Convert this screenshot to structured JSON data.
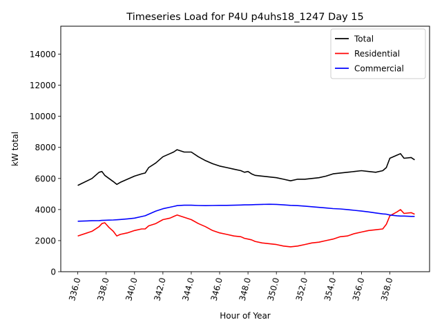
{
  "chart_data": {
    "type": "line",
    "title": "Timeseries Load for P4U p4uhs18_1247  Day 15",
    "xlabel": "Hour of Year",
    "ylabel": "kW total",
    "xlim": [
      334.8,
      360.8
    ],
    "ylim": [
      0,
      15800
    ],
    "xticks": [
      336,
      338,
      340,
      342,
      344,
      346,
      348,
      350,
      352,
      354,
      356,
      358
    ],
    "xtick_labels": [
      "336.0",
      "338.0",
      "340.0",
      "342.0",
      "344.0",
      "346.0",
      "348.0",
      "350.0",
      "352.0",
      "354.0",
      "356.0",
      "358.0"
    ],
    "yticks": [
      0,
      2000,
      4000,
      6000,
      8000,
      10000,
      12000,
      14000
    ],
    "ytick_labels": [
      "0",
      "2000",
      "4000",
      "6000",
      "8000",
      "10000",
      "12000",
      "14000"
    ],
    "legend_position": "top-right",
    "grid": false,
    "x": [
      336.0,
      337.0,
      337.5,
      337.7,
      337.9,
      338.2,
      338.5,
      338.75,
      339.0,
      339.5,
      340.0,
      340.5,
      340.75,
      341.0,
      341.5,
      342.0,
      342.5,
      342.75,
      343.0,
      343.5,
      344.0,
      344.5,
      345.0,
      345.5,
      346.0,
      346.5,
      347.0,
      347.5,
      347.75,
      348.0,
      348.25,
      348.5,
      349.0,
      349.5,
      350.0,
      350.5,
      351.0,
      351.5,
      352.0,
      352.5,
      353.0,
      353.5,
      354.0,
      354.5,
      355.0,
      355.5,
      356.0,
      356.5,
      357.0,
      357.5,
      357.75,
      358.0,
      358.5,
      358.75,
      359.0,
      359.5,
      359.75
    ],
    "series": [
      {
        "name": "Total",
        "color": "#000000",
        "values": [
          5550,
          6000,
          6400,
          6450,
          6200,
          6000,
          5800,
          5620,
          5750,
          5950,
          6150,
          6300,
          6350,
          6700,
          7000,
          7400,
          7600,
          7700,
          7850,
          7700,
          7700,
          7400,
          7150,
          6950,
          6800,
          6700,
          6600,
          6500,
          6400,
          6450,
          6300,
          6200,
          6150,
          6100,
          6050,
          5950,
          5850,
          5950,
          5950,
          6000,
          6050,
          6150,
          6300,
          6350,
          6400,
          6450,
          6500,
          6450,
          6400,
          6500,
          6700,
          7300,
          7500,
          7600,
          7300,
          7350,
          7200
        ]
      },
      {
        "name": "Residential",
        "color": "#ff0000",
        "values": [
          2300,
          2600,
          2900,
          3100,
          3150,
          2850,
          2600,
          2300,
          2400,
          2500,
          2650,
          2750,
          2750,
          2950,
          3100,
          3350,
          3450,
          3550,
          3650,
          3500,
          3350,
          3100,
          2900,
          2650,
          2500,
          2400,
          2300,
          2250,
          2150,
          2100,
          2050,
          1950,
          1850,
          1800,
          1750,
          1650,
          1600,
          1650,
          1750,
          1850,
          1900,
          2000,
          2100,
          2250,
          2300,
          2450,
          2550,
          2650,
          2700,
          2750,
          3050,
          3600,
          3850,
          4000,
          3750,
          3800,
          3700
        ]
      },
      {
        "name": "Commercial",
        "color": "#0000ff",
        "values": [
          3250,
          3280,
          3290,
          3300,
          3310,
          3320,
          3330,
          3340,
          3360,
          3400,
          3450,
          3550,
          3600,
          3700,
          3900,
          4050,
          4150,
          4200,
          4250,
          4280,
          4280,
          4260,
          4250,
          4260,
          4270,
          4270,
          4280,
          4290,
          4300,
          4300,
          4310,
          4320,
          4330,
          4340,
          4330,
          4300,
          4270,
          4250,
          4220,
          4180,
          4140,
          4100,
          4060,
          4040,
          4000,
          3950,
          3900,
          3850,
          3780,
          3720,
          3700,
          3650,
          3600,
          3580,
          3580,
          3560,
          3560
        ]
      }
    ]
  }
}
